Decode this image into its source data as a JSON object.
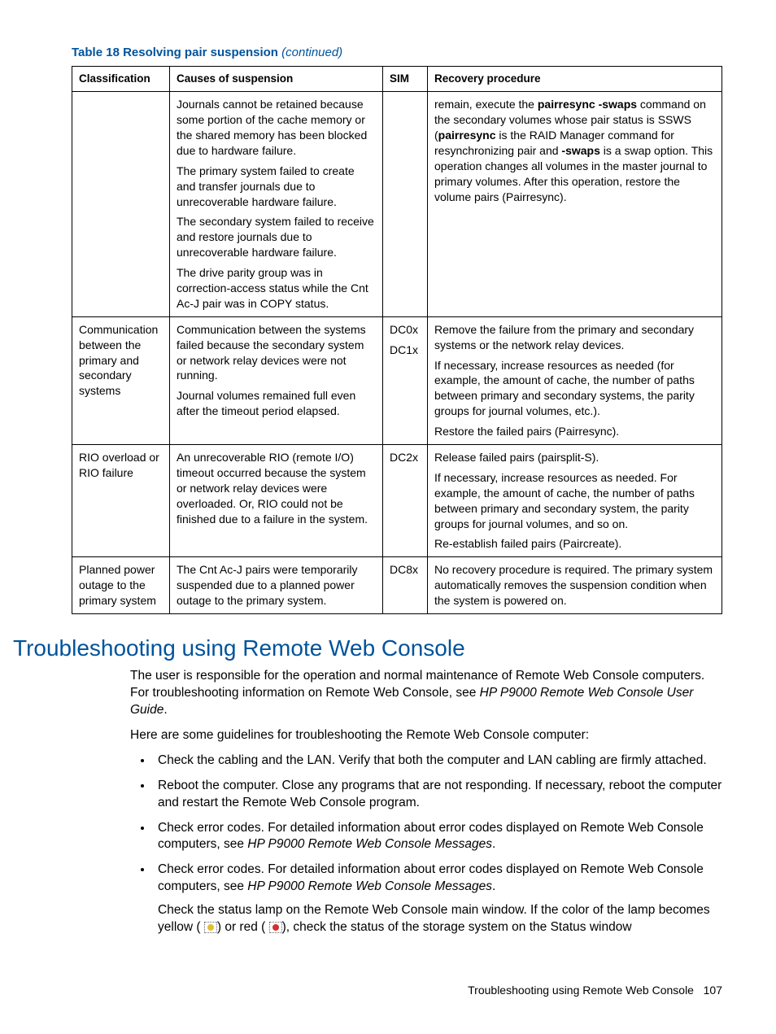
{
  "table": {
    "caption_prefix": "Table 18 Resolving pair suspension",
    "caption_suffix": " (continued)",
    "headers": {
      "c1": "Classification",
      "c2": "Causes of suspension",
      "c3": "SIM",
      "c4": "Recovery procedure"
    },
    "row1": {
      "classification": "",
      "causes_p1": "Journals cannot be retained because some portion of the cache memory or the shared memory has been blocked due to hardware failure.",
      "causes_p2": "The primary system failed to create and transfer journals due to unrecoverable hardware failure.",
      "causes_p3": "The secondary system failed to receive and restore journals due to unrecoverable hardware failure.",
      "causes_p4": "The drive parity group was in correction-access status while the Cnt Ac-J pair was in COPY status.",
      "sim": "",
      "recovery_pre": "remain, execute the ",
      "recovery_b1": "pairresync -swaps",
      "recovery_mid1": " command on the secondary volumes whose pair status is SSWS (",
      "recovery_b2": "pairresync",
      "recovery_mid2": " is the RAID Manager command for resynchronizing pair and ",
      "recovery_b3": "-swaps",
      "recovery_post": " is a swap option. This operation changes all volumes in the master journal to primary volumes. After this operation, restore the volume pairs (Pairresync)."
    },
    "row2": {
      "classification": "Communication between the primary and secondary systems",
      "causes_p1": "Communication between the systems failed because the secondary system or network relay devices were not running.",
      "causes_p2": "Journal volumes remained full even after the timeout period elapsed.",
      "sim_p1": "DC0x",
      "sim_p2": "DC1x",
      "recovery_p1": "Remove the failure from the primary and secondary systems or the network relay devices.",
      "recovery_p2": "If necessary, increase resources as needed (for example, the amount of cache, the number of paths between primary and secondary systems, the parity groups for journal volumes, etc.).",
      "recovery_p3": "Restore the failed pairs (Pairresync)."
    },
    "row3": {
      "classification": "RIO overload or RIO failure",
      "causes": "An unrecoverable RIO (remote I/O) timeout occurred because the system or network relay devices were overloaded. Or, RIO could not be finished due to a failure in the system.",
      "sim": "DC2x",
      "recovery_p1": "Release failed pairs (pairsplit-S).",
      "recovery_p2": "If necessary, increase resources as needed. For example, the amount of cache, the number of paths between primary and secondary system, the parity groups for journal volumes, and so on.",
      "recovery_p3": "Re-establish failed pairs (Paircreate)."
    },
    "row4": {
      "classification": "Planned power outage to the primary system",
      "causes": "The Cnt Ac-J pairs were temporarily suspended due to a planned power outage to the primary system.",
      "sim": "DC8x",
      "recovery": "No recovery procedure is required. The primary system automatically removes the suspension condition when the system is powered on."
    }
  },
  "section": {
    "heading": "Troubleshooting using Remote Web Console",
    "p1_pre": "The user is responsible for the operation and normal maintenance of Remote Web Console computers. For troubleshooting information on Remote Web Console, see ",
    "p1_italic": "HP P9000 Remote Web Console User Guide",
    "p1_post": ".",
    "p2": "Here are some guidelines for troubleshooting the Remote Web Console computer:",
    "li1": "Check the cabling and the LAN. Verify that both the computer and LAN cabling are firmly attached.",
    "li2": "Reboot the computer. Close any programs that are not responding. If necessary, reboot the computer and restart the Remote Web Console program.",
    "li3_pre": "Check error codes. For detailed information about error codes displayed on Remote Web Console computers, see ",
    "li3_italic": "HP P9000 Remote Web Console Messages",
    "li3_post": ".",
    "li4_pre": "Check error codes. For detailed information about error codes displayed on Remote Web Console computers, see ",
    "li4_italic": "HP P9000 Remote Web Console Messages",
    "li4_post": ".",
    "li4_sub_pre": "Check the status lamp on the Remote Web Console main window. If the color of the lamp becomes yellow (",
    "li4_sub_mid": ") or red (",
    "li4_sub_post": "), check the status of the storage system on the Status window"
  },
  "footer": {
    "text": "Troubleshooting using Remote Web Console",
    "page": "107"
  }
}
